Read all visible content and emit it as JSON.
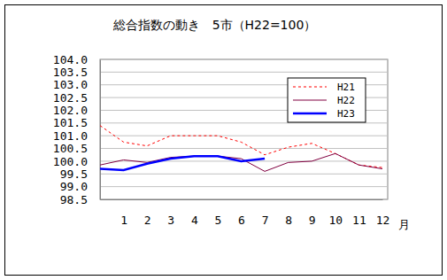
{
  "chart_data": {
    "type": "line",
    "title": "総合指数の動き　5市（H22=100）",
    "x_label": "月",
    "categories": [
      null,
      "1",
      "2",
      "3",
      "4",
      "5",
      "6",
      "7",
      "8",
      "9",
      "10",
      "11",
      "12"
    ],
    "series": [
      {
        "name": "H21",
        "color": "#ff0000",
        "line_style": "dotted",
        "values": [
          101.4,
          100.75,
          100.6,
          101.0,
          101.0,
          101.0,
          100.75,
          100.25,
          100.55,
          100.7,
          100.3,
          99.85,
          99.75
        ]
      },
      {
        "name": "H22",
        "color": "#800040",
        "line_style": "solid",
        "values": [
          99.85,
          100.05,
          99.95,
          100.15,
          100.2,
          100.2,
          100.1,
          99.6,
          99.95,
          100.0,
          100.3,
          99.85,
          99.7
        ]
      },
      {
        "name": "H23",
        "color": "#0000ff",
        "line_style": "solid",
        "values": [
          99.7,
          99.65,
          99.9,
          100.1,
          100.2,
          100.2,
          100.0,
          100.1,
          null,
          null,
          null,
          null,
          null
        ]
      }
    ],
    "ylim": [
      98.5,
      104
    ],
    "yticks": [
      {
        "value": 98.5,
        "label": "98.5"
      },
      {
        "value": 99,
        "label": "99.0"
      },
      99.5,
      {
        "value": 100,
        "label": "100.0"
      },
      100.5,
      {
        "value": 101,
        "label": "101.0"
      },
      101.5,
      {
        "value": 102,
        "label": "102.0"
      },
      102.5,
      {
        "value": 103,
        "label": "103.0"
      },
      103.5,
      {
        "value": 104,
        "label": "104.0"
      }
    ],
    "grid": true,
    "legend": "upper right"
  }
}
